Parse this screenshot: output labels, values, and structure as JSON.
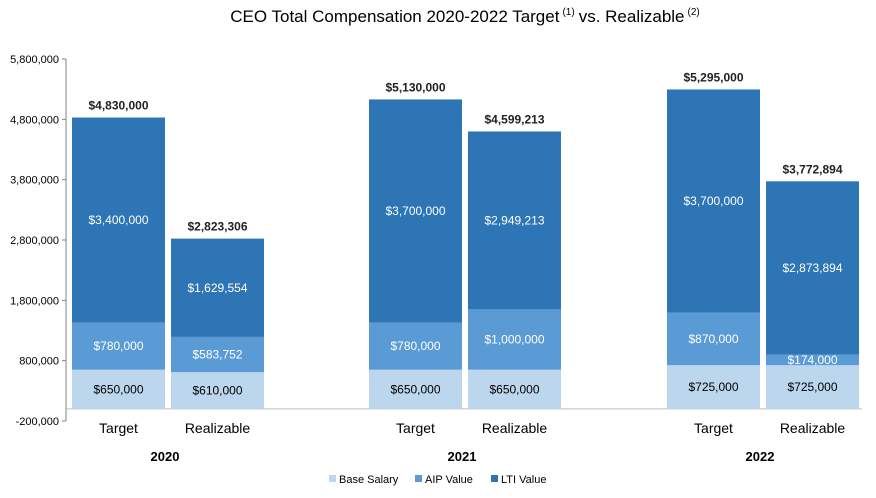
{
  "chart_data": {
    "type": "bar",
    "stacked": true,
    "title": "CEO Total Compensation 2020-2022 Target",
    "title_note_1": "(1)",
    "title_mid": "vs. Realizable",
    "title_note_2": "(2)",
    "ylim": [
      -200000,
      5800000
    ],
    "yticks": [
      -200000,
      800000,
      1800000,
      2800000,
      3800000,
      4800000,
      5800000
    ],
    "ytick_labels": [
      "-200,000",
      "800,000",
      "1,800,000",
      "2,800,000",
      "3,800,000",
      "4,800,000",
      "5,800,000"
    ],
    "groups": [
      "2020",
      "2021",
      "2022"
    ],
    "categories": [
      "Target",
      "Realizable",
      "Target",
      "Realizable",
      "Target",
      "Realizable"
    ],
    "series": [
      {
        "name": "Base Salary",
        "color": "#bcd6ee",
        "label_color": "#000000",
        "values": [
          650000,
          610000,
          650000,
          650000,
          725000,
          725000
        ],
        "labels": [
          "$650,000",
          "$610,000",
          "$650,000",
          "$650,000",
          "$725,000",
          "$725,000"
        ]
      },
      {
        "name": "AIP Value",
        "color": "#5b9bd5",
        "label_color": "#ffffff",
        "values": [
          780000,
          583752,
          780000,
          1000000,
          870000,
          174000
        ],
        "labels": [
          "$780,000",
          "$583,752",
          "$780,000",
          "$1,000,000",
          "$870,000",
          "$174,000"
        ]
      },
      {
        "name": "LTI Value",
        "color": "#2e75b6",
        "label_color": "#ffffff",
        "values": [
          3400000,
          1629554,
          3700000,
          2949213,
          3700000,
          2873894
        ],
        "labels": [
          "$3,400,000",
          "$1,629,554",
          "$3,700,000",
          "$2,949,213",
          "$3,700,000",
          "$2,873,894"
        ]
      }
    ],
    "totals": [
      4830000,
      2823306,
      5130000,
      4599213,
      5295000,
      3772894
    ],
    "total_labels": [
      "$4,830,000",
      "$2,823,306",
      "$5,130,000",
      "$4,599,213",
      "$5,295,000",
      "$3,772,894"
    ],
    "legend_position": "bottom",
    "grid": false
  }
}
